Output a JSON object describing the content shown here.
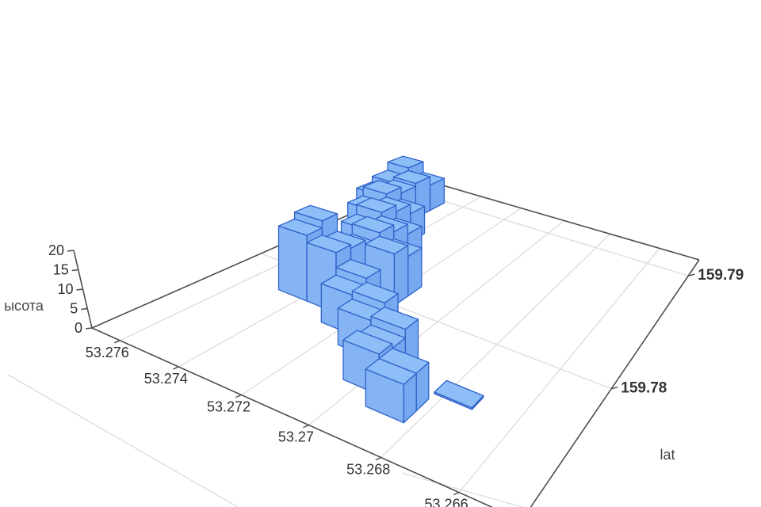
{
  "chart_data": {
    "type": "bar3d",
    "title": "",
    "zaxis": {
      "title": "ысота",
      "ticks": [
        0,
        5,
        10,
        15,
        20
      ],
      "tick_labels": [
        "0",
        "5",
        "10",
        "15",
        "20"
      ],
      "range": [
        0,
        20
      ]
    },
    "xaxis": {
      "title": "",
      "ticks": [
        53.276,
        53.274,
        53.272,
        53.27,
        53.268,
        53.266
      ],
      "tick_labels": [
        "53.276",
        "53.274",
        "53.272",
        "53.27",
        "53.268",
        "53.266"
      ],
      "range": [
        53.2645,
        53.277
      ]
    },
    "yaxis": {
      "title": "lat",
      "ticks": [
        159.78,
        159.79
      ],
      "tick_labels": [
        "159.78",
        "159.79"
      ],
      "range": [
        159.7695,
        159.7915
      ]
    },
    "grid": true,
    "legend": false,
    "bar_footprint_deg": 0.0011,
    "bars": [
      {
        "lat": 53.2765,
        "lon": 159.7893,
        "h": 13
      },
      {
        "lat": 53.2754,
        "lon": 159.7893,
        "h": 9
      },
      {
        "lat": 53.2765,
        "lon": 159.7882,
        "h": 10
      },
      {
        "lat": 53.2754,
        "lon": 159.7882,
        "h": 12
      },
      {
        "lat": 53.2765,
        "lon": 159.7871,
        "h": 8
      },
      {
        "lat": 53.2754,
        "lon": 159.7871,
        "h": 11
      },
      {
        "lat": 53.2754,
        "lon": 159.786,
        "h": 13
      },
      {
        "lat": 53.2743,
        "lon": 159.786,
        "h": 9
      },
      {
        "lat": 53.2754,
        "lon": 159.7849,
        "h": 10
      },
      {
        "lat": 53.2743,
        "lon": 159.7849,
        "h": 12
      },
      {
        "lat": 53.2743,
        "lon": 159.7838,
        "h": 14
      },
      {
        "lat": 53.2732,
        "lon": 159.7838,
        "h": 10
      },
      {
        "lat": 53.2743,
        "lon": 159.7827,
        "h": 11
      },
      {
        "lat": 53.2732,
        "lon": 159.7827,
        "h": 13
      },
      {
        "lat": 53.2732,
        "lon": 159.7816,
        "h": 15
      },
      {
        "lat": 53.2721,
        "lon": 159.7816,
        "h": 11
      },
      {
        "lat": 53.2732,
        "lon": 159.7805,
        "h": 12
      },
      {
        "lat": 53.2721,
        "lon": 159.7805,
        "h": 14
      },
      {
        "lat": 53.2743,
        "lon": 159.7794,
        "h": 20
      },
      {
        "lat": 53.2743,
        "lon": 159.7783,
        "h": 18
      },
      {
        "lat": 53.2732,
        "lon": 159.7794,
        "h": 15
      },
      {
        "lat": 53.2732,
        "lon": 159.7783,
        "h": 16
      },
      {
        "lat": 53.2721,
        "lon": 159.7783,
        "h": 12
      },
      {
        "lat": 53.2721,
        "lon": 159.7772,
        "h": 10
      },
      {
        "lat": 53.271,
        "lon": 159.7772,
        "h": 11
      },
      {
        "lat": 53.271,
        "lon": 159.7761,
        "h": 9
      },
      {
        "lat": 53.2699,
        "lon": 159.7761,
        "h": 10
      },
      {
        "lat": 53.2699,
        "lon": 159.775,
        "h": 8
      },
      {
        "lat": 53.2699,
        "lon": 159.7739,
        "h": 9
      },
      {
        "lat": 53.2688,
        "lon": 159.7739,
        "h": 8
      },
      {
        "lat": 53.2688,
        "lon": 159.7728,
        "h": 8
      },
      {
        "lat": 53.2677,
        "lon": 159.7755,
        "h": 0.35
      }
    ],
    "colors": {
      "bar_top": "#8EBEF8",
      "bar_front": "#84B4F4",
      "bar_side": "#77A9F0",
      "bar_edge": "#2E61C9",
      "grid_line": "#DCDCDC",
      "axis_line": "#4D4D4D",
      "tick_text": "#333333",
      "title_text": "#444444",
      "background": "#FFFFFF"
    }
  }
}
